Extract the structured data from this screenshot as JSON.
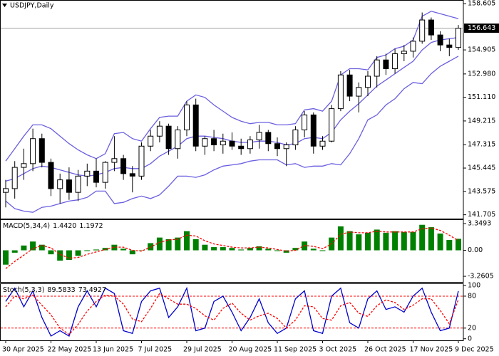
{
  "chart_data": [
    {
      "type": "candlestick",
      "title": "USDJPY,Daily",
      "categories": [
        "30 Apr 2025",
        null,
        null,
        null,
        null,
        "22 May 2025",
        null,
        null,
        null,
        null,
        "13 Jun 2025",
        null,
        null,
        null,
        null,
        "7 Jul 2025",
        null,
        null,
        null,
        null,
        "29 Jul 2025",
        null,
        null,
        null,
        null,
        "20 Aug 2025",
        null,
        null,
        null,
        null,
        "11 Sep 2025",
        null,
        null,
        null,
        null,
        "3 Oct 2025",
        null,
        null,
        null,
        null,
        "26 Oct 2025",
        null,
        null,
        null,
        null,
        "17 Nov 2025",
        null,
        null,
        null,
        null,
        "9 Dec 2025"
      ],
      "open": [
        143.5,
        143.8,
        145.5,
        145.8,
        147.8,
        145.9,
        143.8,
        144.5,
        143.5,
        144.8,
        145.2,
        144.3,
        145.9,
        146.2,
        145.0,
        144.8,
        147.2,
        148.0,
        148.8,
        147.0,
        148.5,
        150.5,
        147.2,
        147.8,
        147.3,
        147.6,
        147.2,
        147.0,
        147.7,
        148.3,
        147.4,
        147.0,
        147.3,
        148.5,
        149.7,
        147.2,
        147.6,
        150.2,
        152.9,
        151.2,
        151.9,
        152.8,
        154.1,
        153.4,
        154.6,
        154.8,
        155.6,
        157.3,
        156.1,
        155.3,
        155.1
      ],
      "high": [
        144.5,
        146.0,
        147.0,
        148.6,
        148.2,
        146.2,
        145.0,
        145.5,
        145.3,
        145.8,
        146.2,
        146.0,
        148.0,
        146.5,
        145.6,
        147.5,
        148.5,
        149.2,
        149.0,
        148.8,
        150.8,
        151.0,
        148.0,
        148.5,
        148.2,
        148.3,
        147.8,
        148.0,
        148.9,
        148.5,
        147.9,
        147.5,
        148.8,
        150.0,
        149.9,
        148.0,
        150.5,
        153.2,
        153.3,
        152.3,
        153.2,
        154.4,
        154.6,
        155.0,
        155.3,
        155.9,
        157.9,
        157.5,
        156.4,
        155.8,
        156.9
      ],
      "low": [
        142.3,
        143.0,
        144.5,
        145.2,
        145.5,
        143.2,
        142.6,
        142.9,
        142.8,
        144.0,
        143.9,
        143.8,
        145.2,
        144.5,
        143.5,
        144.5,
        146.8,
        147.5,
        146.5,
        146.2,
        148.0,
        146.8,
        146.5,
        146.8,
        146.6,
        146.9,
        146.5,
        146.6,
        147.0,
        146.8,
        146.4,
        145.6,
        146.9,
        147.9,
        146.6,
        146.9,
        147.5,
        150.0,
        150.8,
        149.9,
        151.2,
        151.9,
        152.9,
        153.0,
        154.0,
        154.3,
        155.4,
        155.7,
        154.8,
        154.4,
        154.9
      ],
      "close": [
        143.8,
        145.5,
        145.8,
        147.8,
        145.9,
        143.8,
        144.5,
        143.5,
        144.8,
        145.2,
        144.3,
        145.9,
        146.2,
        145.0,
        144.8,
        147.2,
        148.0,
        148.8,
        147.0,
        148.5,
        150.5,
        147.2,
        147.8,
        147.3,
        147.6,
        147.2,
        147.0,
        147.7,
        148.3,
        147.4,
        147.0,
        147.3,
        148.5,
        149.7,
        147.2,
        147.6,
        150.2,
        152.9,
        151.2,
        151.9,
        152.8,
        154.1,
        153.4,
        154.6,
        154.8,
        155.6,
        157.3,
        156.1,
        155.3,
        155.1,
        156.643
      ],
      "up_color": "#ffffff",
      "down_color": "#000000",
      "wick_color": "#000000",
      "series": [
        {
          "color": "#6a5fe0",
          "values": [
            146.0,
            147.0,
            148.0,
            148.9,
            148.9,
            148.6,
            148.0,
            147.4,
            146.9,
            146.5,
            146.2,
            146.6,
            148.2,
            148.3,
            147.8,
            147.6,
            148.6,
            149.5,
            149.6,
            149.6,
            150.8,
            151.3,
            151.1,
            150.5,
            150.0,
            149.5,
            149.2,
            149.0,
            149.1,
            149.1,
            148.9,
            148.9,
            149.0,
            150.1,
            150.2,
            150.0,
            150.8,
            152.9,
            153.4,
            153.4,
            153.3,
            154.3,
            154.5,
            155.0,
            155.2,
            155.7,
            157.6,
            158.0,
            157.8,
            157.6,
            157.4
          ]
        },
        {
          "color": "#6a5fe0",
          "values": [
            144.4,
            144.6,
            145.0,
            145.4,
            145.6,
            145.5,
            145.3,
            145.1,
            144.9,
            144.8,
            144.9,
            145.1,
            145.4,
            145.5,
            145.4,
            145.4,
            145.8,
            146.4,
            146.8,
            147.2,
            147.8,
            148.0,
            148.0,
            147.9,
            147.8,
            147.6,
            147.5,
            147.5,
            147.6,
            147.6,
            147.5,
            147.3,
            147.4,
            147.8,
            147.9,
            147.8,
            148.3,
            149.3,
            150.0,
            150.6,
            151.3,
            152.0,
            152.5,
            153.0,
            153.5,
            154.0,
            154.9,
            155.5,
            155.7,
            155.8,
            155.9
          ]
        },
        {
          "color": "#6a5fe0",
          "values": [
            142.8,
            142.2,
            142.0,
            141.9,
            142.3,
            142.4,
            142.6,
            142.8,
            142.9,
            143.1,
            143.6,
            143.6,
            142.6,
            142.7,
            143.0,
            143.2,
            143.0,
            143.3,
            144.0,
            144.8,
            144.8,
            144.7,
            144.9,
            145.3,
            145.6,
            145.7,
            145.8,
            146.0,
            146.1,
            146.1,
            146.1,
            145.7,
            145.8,
            145.5,
            145.6,
            145.6,
            145.8,
            145.7,
            146.6,
            147.8,
            149.3,
            149.7,
            150.5,
            151.0,
            151.8,
            152.3,
            152.2,
            153.0,
            153.6,
            154.0,
            154.4
          ]
        }
      ],
      "last_price": {
        "value": 156.643,
        "label": "156.643"
      },
      "ylim": [
        141.4,
        158.9
      ],
      "yticks": [
        141.705,
        143.575,
        145.445,
        147.315,
        149.215,
        {
          "value": 151.11,
          "label": "151.110"
        },
        {
          "value": 152.98,
          "label": "152.980"
        },
        154.905,
        158.605
      ]
    },
    {
      "type": "bar",
      "title": "MACD(5,34,4)",
      "header_values": [
        "1.4420",
        "1.1972"
      ],
      "series": [
        {
          "type": "bar",
          "color": "#008000",
          "values": [
            -1.8,
            -0.3,
            0.6,
            1.1,
            0.7,
            -0.5,
            -1.3,
            -1.2,
            -0.7,
            -0.1,
            0.1,
            0.3,
            0.7,
            0.2,
            -0.5,
            0.0,
            0.9,
            1.6,
            1.4,
            1.6,
            2.4,
            1.4,
            0.7,
            0.4,
            0.4,
            0.3,
            0.1,
            0.3,
            0.5,
            0.2,
            -0.1,
            -0.3,
            0.3,
            1.1,
            0.2,
            -0.1,
            1.6,
            3.0,
            2.4,
            2.0,
            2.2,
            2.6,
            2.2,
            2.4,
            2.3,
            2.3,
            3.2,
            2.9,
            2.1,
            1.3,
            1.442
          ]
        },
        {
          "type": "line",
          "color": "#ff0000",
          "dashed": true,
          "values": [
            -2.3,
            -1.4,
            -0.6,
            0.2,
            0.6,
            0.3,
            -0.5,
            -1.0,
            -0.9,
            -0.5,
            -0.2,
            0.1,
            0.4,
            0.4,
            0.0,
            -0.1,
            0.4,
            1.0,
            1.3,
            1.4,
            1.9,
            1.8,
            1.2,
            0.8,
            0.6,
            0.4,
            0.3,
            0.3,
            0.4,
            0.3,
            0.1,
            -0.1,
            0.0,
            0.6,
            0.5,
            0.2,
            0.8,
            2.0,
            2.3,
            2.2,
            2.2,
            2.4,
            2.3,
            2.3,
            2.3,
            2.3,
            2.7,
            2.8,
            2.5,
            1.9,
            1.1972
          ]
        }
      ],
      "ylim": [
        -3.97,
        3.89
      ],
      "yticks": [
        -3.2605,
        {
          "value": 0,
          "label": "0.00"
        },
        3.3493
      ]
    },
    {
      "type": "line",
      "title": "Stoch(5,3,3)",
      "header_values": [
        "89.5833",
        "73.4927"
      ],
      "series": [
        {
          "type": "line",
          "color": "#0000cd",
          "dashed": false,
          "values": [
            70,
            95,
            60,
            90,
            40,
            5,
            15,
            5,
            60,
            90,
            60,
            95,
            85,
            15,
            10,
            70,
            90,
            95,
            40,
            60,
            95,
            15,
            20,
            70,
            80,
            50,
            15,
            40,
            75,
            30,
            10,
            20,
            75,
            90,
            15,
            10,
            80,
            95,
            30,
            20,
            75,
            90,
            55,
            60,
            50,
            80,
            95,
            50,
            15,
            20,
            89.5833
          ]
        },
        {
          "type": "line",
          "color": "#ff0000",
          "dashed": true,
          "values": [
            60,
            80,
            75,
            82,
            63,
            45,
            20,
            8,
            27,
            52,
            70,
            82,
            80,
            65,
            37,
            32,
            57,
            85,
            75,
            65,
            65,
            57,
            43,
            35,
            57,
            67,
            48,
            35,
            43,
            48,
            38,
            20,
            35,
            62,
            60,
            38,
            35,
            62,
            68,
            48,
            42,
            62,
            73,
            68,
            55,
            63,
            75,
            75,
            53,
            28,
            73.4927
          ]
        }
      ],
      "levels": [
        80,
        20
      ],
      "level_color": "#ff0000",
      "ylim": [
        -3,
        104
      ],
      "yticks": [
        0,
        20,
        80,
        100
      ]
    }
  ]
}
